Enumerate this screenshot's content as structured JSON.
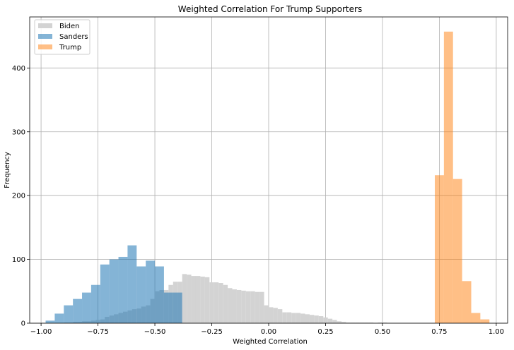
{
  "chart_data": {
    "type": "histogram",
    "title": "Weighted Correlation For Trump Supporters",
    "xlabel": "Weighted Correlation",
    "ylabel": "Frequency",
    "xlim": [
      -1.05,
      1.05
    ],
    "ylim": [
      0,
      480
    ],
    "xticks": [
      -1.0,
      -0.75,
      -0.5,
      -0.25,
      0.0,
      0.25,
      0.5,
      0.75,
      1.0
    ],
    "xtick_labels": [
      "−1.00",
      "−0.75",
      "−0.50",
      "−0.25",
      "0.00",
      "0.25",
      "0.50",
      "0.75",
      "1.00"
    ],
    "yticks": [
      0,
      100,
      200,
      300,
      400
    ],
    "ytick_labels": [
      "0",
      "100",
      "200",
      "300",
      "400"
    ],
    "grid": true,
    "legend_position": "top-left",
    "series": [
      {
        "name": "Biden",
        "color": "#d3d3d3",
        "opacity": 1.0,
        "bins": [
          [
            -0.9,
            -0.88,
            1
          ],
          [
            -0.88,
            -0.86,
            1
          ],
          [
            -0.86,
            -0.84,
            2
          ],
          [
            -0.84,
            -0.82,
            2
          ],
          [
            -0.82,
            -0.8,
            3
          ],
          [
            -0.8,
            -0.78,
            3
          ],
          [
            -0.78,
            -0.76,
            4
          ],
          [
            -0.76,
            -0.74,
            5
          ],
          [
            -0.74,
            -0.72,
            6
          ],
          [
            -0.72,
            -0.7,
            10
          ],
          [
            -0.7,
            -0.68,
            12
          ],
          [
            -0.68,
            -0.66,
            14
          ],
          [
            -0.66,
            -0.64,
            16
          ],
          [
            -0.64,
            -0.62,
            18
          ],
          [
            -0.62,
            -0.6,
            20
          ],
          [
            -0.6,
            -0.58,
            22
          ],
          [
            -0.58,
            -0.56,
            23
          ],
          [
            -0.56,
            -0.54,
            26
          ],
          [
            -0.54,
            -0.52,
            28
          ],
          [
            -0.52,
            -0.5,
            38
          ],
          [
            -0.5,
            -0.48,
            50
          ],
          [
            -0.48,
            -0.46,
            52
          ],
          [
            -0.46,
            -0.44,
            52
          ],
          [
            -0.44,
            -0.42,
            60
          ],
          [
            -0.42,
            -0.4,
            65
          ],
          [
            -0.4,
            -0.38,
            65
          ],
          [
            -0.38,
            -0.36,
            77
          ],
          [
            -0.36,
            -0.34,
            76
          ],
          [
            -0.34,
            -0.32,
            74
          ],
          [
            -0.32,
            -0.3,
            74
          ],
          [
            -0.3,
            -0.28,
            73
          ],
          [
            -0.28,
            -0.26,
            72
          ],
          [
            -0.26,
            -0.24,
            64
          ],
          [
            -0.24,
            -0.22,
            64
          ],
          [
            -0.22,
            -0.2,
            63
          ],
          [
            -0.2,
            -0.18,
            60
          ],
          [
            -0.18,
            -0.16,
            55
          ],
          [
            -0.16,
            -0.14,
            53
          ],
          [
            -0.14,
            -0.12,
            52
          ],
          [
            -0.12,
            -0.1,
            51
          ],
          [
            -0.1,
            -0.08,
            50
          ],
          [
            -0.08,
            -0.06,
            50
          ],
          [
            -0.06,
            -0.04,
            49
          ],
          [
            -0.04,
            -0.02,
            49
          ],
          [
            -0.02,
            0.0,
            28
          ],
          [
            0.0,
            0.02,
            25
          ],
          [
            0.02,
            0.04,
            24
          ],
          [
            0.04,
            0.06,
            22
          ],
          [
            0.06,
            0.08,
            17
          ],
          [
            0.08,
            0.1,
            17
          ],
          [
            0.1,
            0.12,
            16
          ],
          [
            0.12,
            0.14,
            16
          ],
          [
            0.14,
            0.16,
            15
          ],
          [
            0.16,
            0.18,
            14
          ],
          [
            0.18,
            0.2,
            13
          ],
          [
            0.2,
            0.22,
            12
          ],
          [
            0.22,
            0.24,
            11
          ],
          [
            0.24,
            0.26,
            9
          ],
          [
            0.26,
            0.28,
            7
          ],
          [
            0.28,
            0.3,
            5
          ],
          [
            0.3,
            0.32,
            3
          ],
          [
            0.32,
            0.34,
            2
          ],
          [
            0.34,
            0.36,
            1
          ],
          [
            0.36,
            0.38,
            1
          ],
          [
            0.38,
            0.4,
            1
          ],
          [
            0.4,
            0.42,
            1
          ],
          [
            0.42,
            0.44,
            1
          ],
          [
            0.44,
            0.46,
            1
          ],
          [
            0.48,
            0.5,
            1
          ],
          [
            0.5,
            0.52,
            1
          ]
        ]
      },
      {
        "name": "Sanders",
        "color": "#1f77b4",
        "opacity": 0.55,
        "bins": [
          [
            -0.98,
            -0.94,
            4
          ],
          [
            -0.94,
            -0.9,
            15
          ],
          [
            -0.9,
            -0.86,
            28
          ],
          [
            -0.86,
            -0.82,
            38
          ],
          [
            -0.82,
            -0.78,
            48
          ],
          [
            -0.78,
            -0.74,
            60
          ],
          [
            -0.74,
            -0.7,
            92
          ],
          [
            -0.7,
            -0.66,
            100
          ],
          [
            -0.66,
            -0.62,
            104
          ],
          [
            -0.62,
            -0.58,
            122
          ],
          [
            -0.58,
            -0.54,
            89
          ],
          [
            -0.54,
            -0.5,
            98
          ],
          [
            -0.5,
            -0.46,
            89
          ],
          [
            -0.46,
            -0.42,
            48
          ],
          [
            -0.42,
            -0.38,
            48
          ]
        ]
      },
      {
        "name": "Trump",
        "color": "#ff7f0e",
        "opacity": 0.5,
        "bins": [
          [
            0.73,
            0.77,
            232
          ],
          [
            0.77,
            0.81,
            457
          ],
          [
            0.81,
            0.85,
            226
          ],
          [
            0.85,
            0.89,
            66
          ],
          [
            0.89,
            0.93,
            16
          ],
          [
            0.93,
            0.97,
            6
          ]
        ]
      }
    ]
  }
}
